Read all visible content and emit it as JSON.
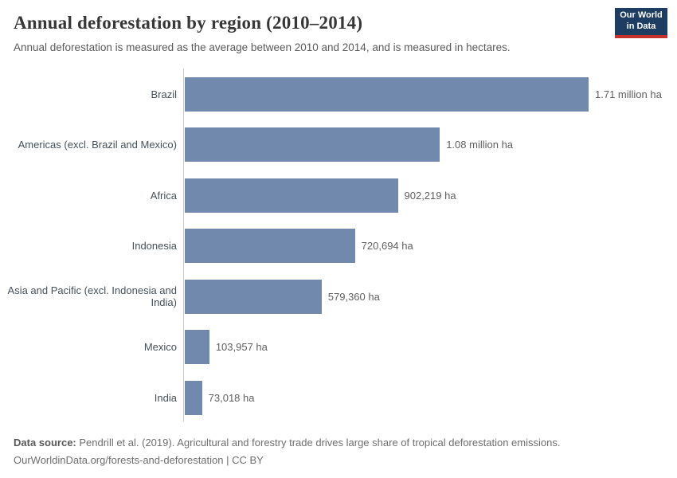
{
  "header": {
    "title": "Annual deforestation by region (2010–2014)",
    "subtitle": "Annual deforestation is measured as the average between 2010 and 2014, and is measured in hectares.",
    "logo": {
      "line1": "Our World",
      "line2": "in Data"
    }
  },
  "chart_data": {
    "type": "bar",
    "orientation": "horizontal",
    "title": "Annual deforestation by region (2010–2014)",
    "unit": "hectares",
    "categories": [
      "Brazil",
      "Americas (excl. Brazil and Mexico)",
      "Africa",
      "Indonesia",
      "Asia and Pacific (excl. Indonesia and India)",
      "Mexico",
      "India"
    ],
    "values": [
      1710000,
      1080000,
      902219,
      720694,
      579360,
      103957,
      73018
    ],
    "value_labels": [
      "1.71 million ha",
      "1.08 million ha",
      "902,219 ha",
      "720,694 ha",
      "579,360 ha",
      "103,957 ha",
      "73,018 ha"
    ],
    "xlim": [
      0,
      1710000
    ],
    "grid": false,
    "legend": "none",
    "bar_color": "#7189ad"
  },
  "footer": {
    "source_label": "Data source:",
    "source_text": " Pendrill et al. (2019). Agricultural and forestry trade drives large share of tropical deforestation emissions.",
    "link_line": "OurWorldinData.org/forests-and-deforestation | CC BY"
  },
  "colors": {
    "bar": "#7189ad",
    "axis": "#c9c9c9",
    "logo_bg": "#1d3d63",
    "logo_accent": "#c5342c"
  }
}
